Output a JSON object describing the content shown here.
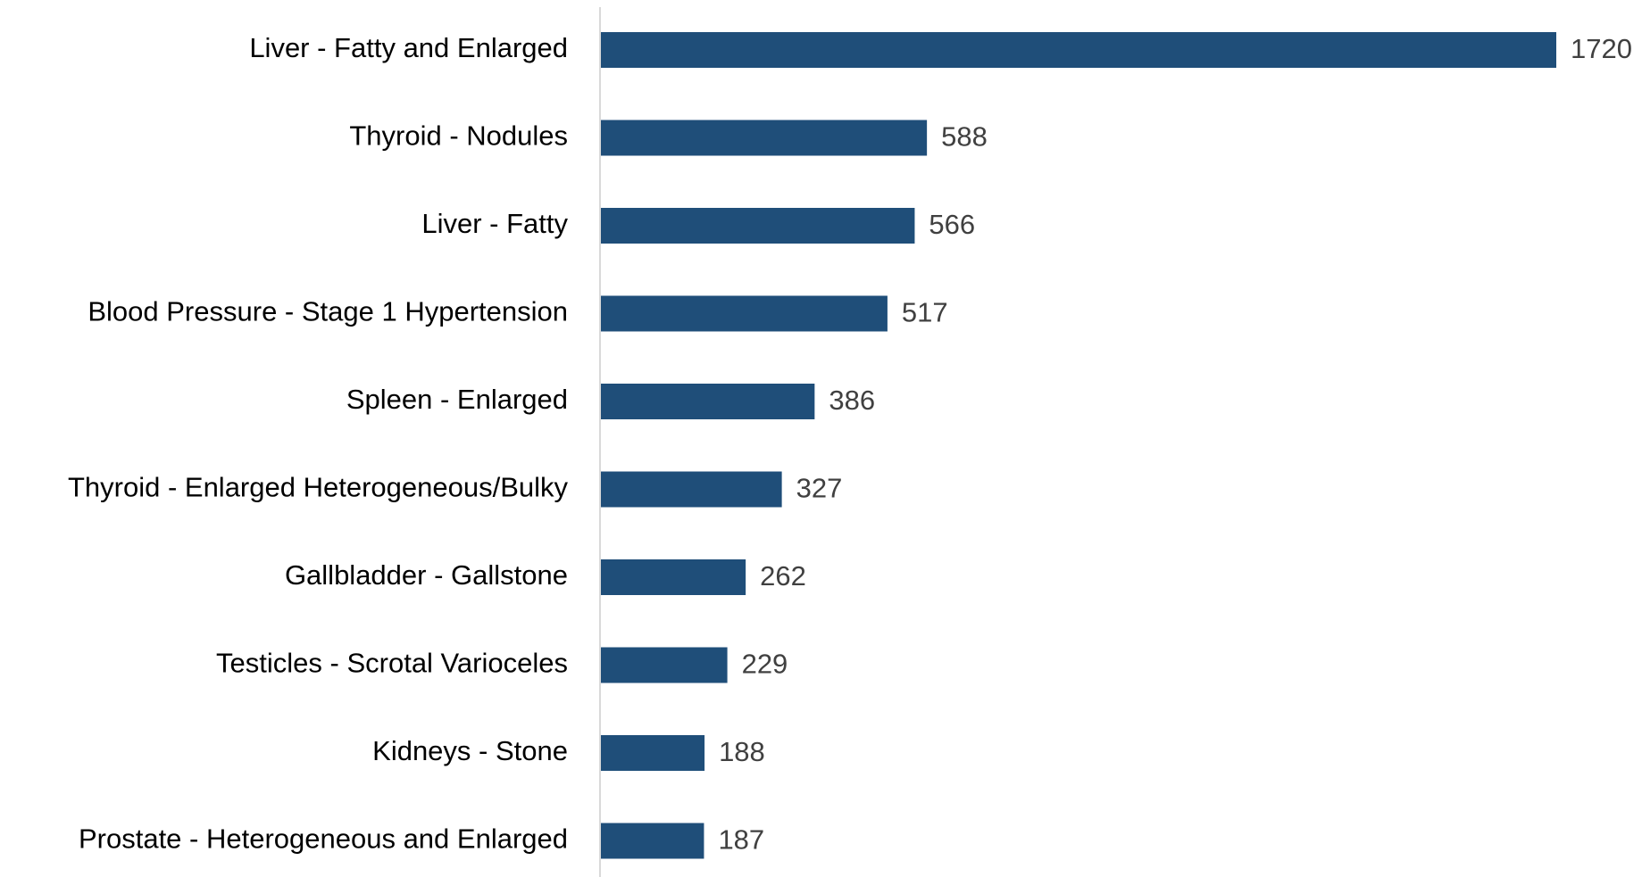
{
  "chart_data": {
    "type": "bar",
    "orientation": "horizontal",
    "categories": [
      "Liver - Fatty and Enlarged",
      "Thyroid - Nodules",
      "Liver - Fatty",
      "Blood Pressure - Stage 1 Hypertension",
      "Spleen - Enlarged",
      "Thyroid - Enlarged Heterogeneous/Bulky",
      "Gallbladder - Gallstone",
      "Testicles - Scrotal Varioceles",
      "Kidneys - Stone",
      "Prostate - Heterogeneous and Enlarged"
    ],
    "values": [
      1720,
      588,
      566,
      517,
      386,
      327,
      262,
      229,
      188,
      187
    ],
    "value_labels": [
      "1720",
      "588",
      "566",
      "517",
      "386",
      "327",
      "262",
      "229",
      "188",
      "187"
    ],
    "title": "",
    "xlabel": "",
    "ylabel": "",
    "xlim": [
      0,
      1720
    ],
    "grid": false,
    "legend": "none",
    "colors": {
      "bar": "#1f4e79",
      "axis": "#d9d9d9",
      "category_text": "#000000",
      "value_text": "#404040"
    }
  }
}
